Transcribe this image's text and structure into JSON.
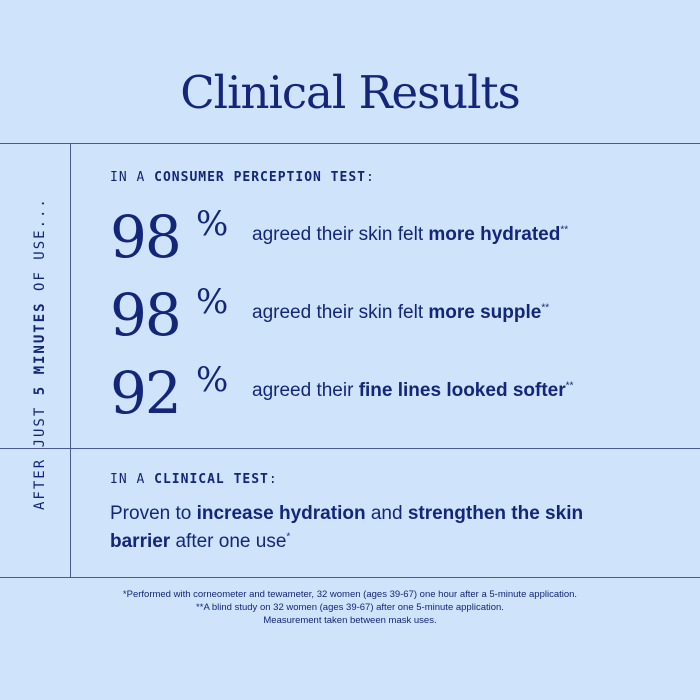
{
  "title": "Clinical Results",
  "side_label": {
    "before": "AFTER JUST ",
    "bold": "5 MINUTES",
    "after": " OF USE..."
  },
  "consumer_section": {
    "prefix": "IN A ",
    "bold": "CONSUMER PERCEPTION TEST",
    "suffix": ":"
  },
  "stats": [
    {
      "value": "98",
      "unit": "%",
      "text": "agreed their skin felt ",
      "bold": "more hydrated",
      "tail": "",
      "mark": "**"
    },
    {
      "value": "98",
      "unit": "%",
      "text": "agreed their skin felt ",
      "bold": "more supple",
      "tail": "",
      "mark": "**"
    },
    {
      "value": "92",
      "unit": "%",
      "text": "agreed their ",
      "bold": "fine lines looked softer",
      "tail": "",
      "mark": "**"
    }
  ],
  "clinical_section": {
    "prefix": "IN A ",
    "bold": "CLINICAL TEST",
    "suffix": ":"
  },
  "clinical_text": {
    "t1": "Proven to ",
    "b1": "increase hydration",
    "t2": " and ",
    "b2": "strengthen the skin barrier",
    "t3": " after one use",
    "mark": "*"
  },
  "footnotes": [
    "*Performed with corneometer and tewameter, 32 women (ages 39-67) one hour after a 5-minute application.",
    "**A blind study on 32 women (ages 39-67) after one 5-minute application.",
    "Measurement taken between mask uses."
  ],
  "colors": {
    "background": "#cfe3fb",
    "text": "#14267a",
    "rule": "#4a5a8f"
  }
}
